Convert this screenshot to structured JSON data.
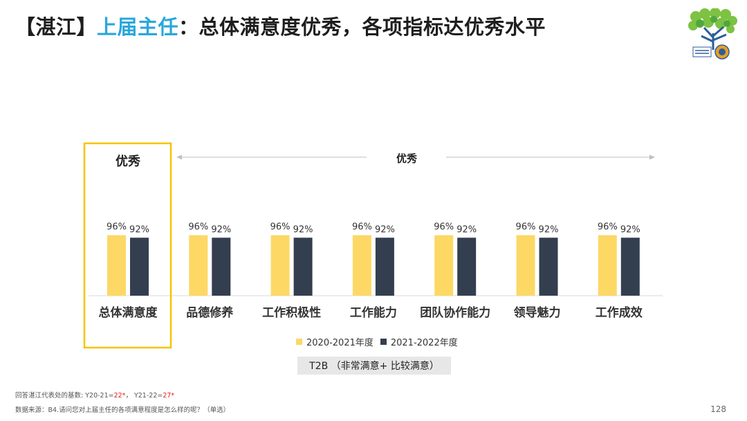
{
  "title": {
    "prefix": "【湛江】",
    "highlight": "上届主任",
    "rest": "：总体满意度优秀，各项指标达优秀水平"
  },
  "chart_data": {
    "type": "bar",
    "categories": [
      "总体满意度",
      "品德修养",
      "工作积极性",
      "工作能力",
      "团队协作能力",
      "领导魅力",
      "工作成效"
    ],
    "series": [
      {
        "name": "2020-2021年度",
        "values": [
          96,
          96,
          96,
          96,
          96,
          96,
          96
        ],
        "labels": [
          "96%",
          "96%",
          "96%",
          "96%",
          "96%",
          "96%",
          "96%"
        ],
        "color": "#fdd865"
      },
      {
        "name": "2021-2022年度",
        "values": [
          92,
          92,
          92,
          92,
          92,
          92,
          92
        ],
        "labels": [
          "92%",
          "92%",
          "92%",
          "92%",
          "92%",
          "92%",
          "92%"
        ],
        "color": "#333f4f"
      }
    ],
    "ylim": [
      0,
      100
    ],
    "highlight_box": {
      "category": "总体满意度",
      "label": "优秀",
      "color": "#f5c400"
    },
    "range_annotation": {
      "label": "优秀",
      "from": "品德修养",
      "to": "工作成效"
    },
    "measure_label": "T2B （非常满意+ 比较满意）"
  },
  "footer": {
    "base_prefix": "回答湛江代表处的基数:   Y20-21=",
    "base_v1": "22*",
    "base_mid": "，  Y21-22=",
    "base_v2": "27*",
    "source": "数据来源：B4.请问您对上届主任的各项满意程度是怎么样的呢？（单选）"
  },
  "page_number": "128",
  "colors": {
    "accent": "#29a7dc",
    "series1": "#fdd865",
    "series2": "#333f4f"
  }
}
